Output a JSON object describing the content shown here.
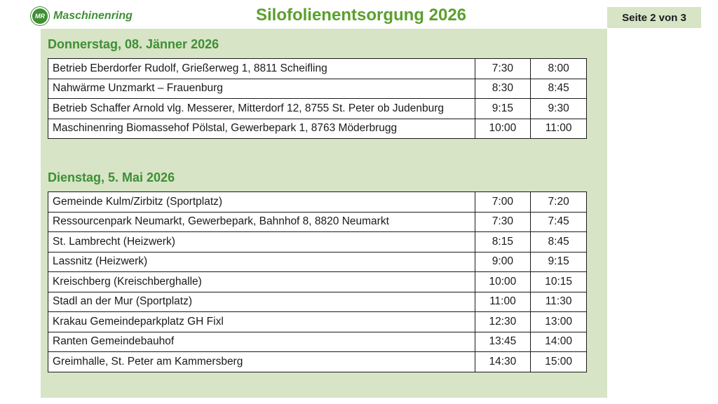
{
  "header": {
    "logo_mark": "MR",
    "logo_text": "Maschinenring",
    "title": "Silofolienentsorgung 2026",
    "page_indicator": "Seite 2 von 3"
  },
  "sections": [
    {
      "heading": "Donnerstag, 08. Jänner 2026",
      "rows": [
        {
          "location": "Betrieb Eberdorfer Rudolf, Grießerweg 1, 8811 Scheifling",
          "from": "7:30",
          "to": "8:00"
        },
        {
          "location": "Nahwärme Unzmarkt – Frauenburg",
          "from": "8:30",
          "to": "8:45"
        },
        {
          "location": "Betrieb Schaffer Arnold vlg. Messerer, Mitterdorf 12, 8755 St. Peter ob Judenburg",
          "from": "9:15",
          "to": "9:30"
        },
        {
          "location": "Maschinenring Biomassehof Pölstal, Gewerbepark 1, 8763 Möderbrugg",
          "from": "10:00",
          "to": "11:00"
        }
      ]
    },
    {
      "heading": "Dienstag, 5. Mai 2026",
      "rows": [
        {
          "location": "Gemeinde Kulm/Zirbitz (Sportplatz)",
          "from": "7:00",
          "to": "7:20"
        },
        {
          "location": "Ressourcenpark Neumarkt, Gewerbepark, Bahnhof 8, 8820 Neumarkt",
          "from": "7:30",
          "to": "7:45"
        },
        {
          "location": "St. Lambrecht (Heizwerk)",
          "from": "8:15",
          "to": "8:45"
        },
        {
          "location": "Lassnitz (Heizwerk)",
          "from": "9:00",
          "to": "9:15"
        },
        {
          "location": "Kreischberg (Kreischberghalle)",
          "from": "10:00",
          "to": "10:15"
        },
        {
          "location": "Stadl an der Mur (Sportplatz)",
          "from": "11:00",
          "to": "11:30"
        },
        {
          "location": "Krakau Gemeindeparkplatz GH Fixl",
          "from": "12:30",
          "to": "13:00"
        },
        {
          "location": "Ranten Gemeindebauhof",
          "from": "13:45",
          "to": "14:00"
        },
        {
          "location": "Greimhalle, St. Peter am Kammersberg",
          "from": "14:30",
          "to": "15:00"
        }
      ]
    }
  ]
}
